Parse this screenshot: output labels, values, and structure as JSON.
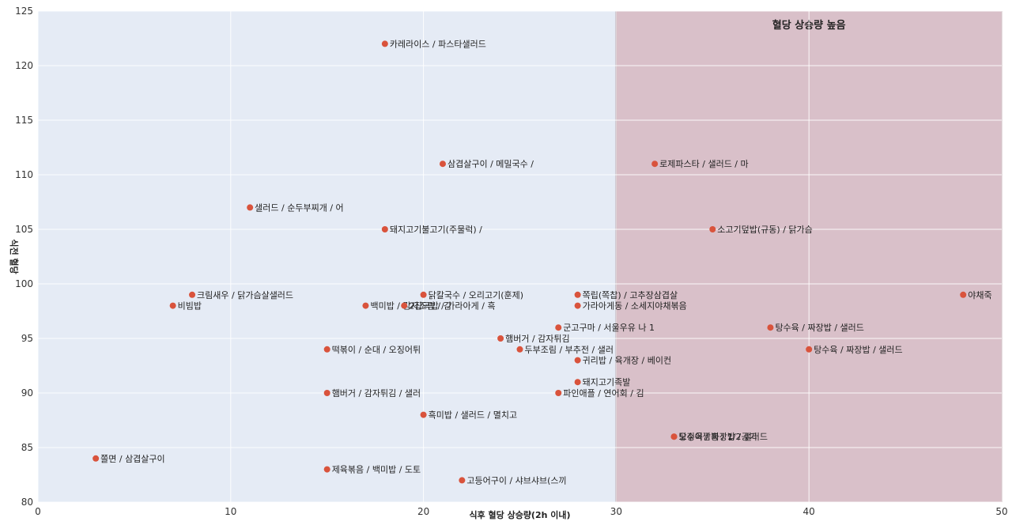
{
  "chart_data": {
    "type": "scatter",
    "xlabel": "식후 혈당 상승량(2h 이내)",
    "ylabel": "식전 혈당",
    "xlim": [
      0,
      50
    ],
    "ylim": [
      80,
      125
    ],
    "x_ticks": [
      0,
      10,
      20,
      30,
      40,
      50
    ],
    "y_ticks": [
      80,
      85,
      90,
      95,
      100,
      105,
      110,
      115,
      120,
      125
    ],
    "grid": true,
    "regions": [
      {
        "x_from": 30,
        "x_to": 50,
        "label": "혈당 상승량 높음",
        "color": "#d9c0c9"
      }
    ],
    "plot_background": "#e5ebf5",
    "marker_color": "#d9533c",
    "points": [
      {
        "x": 18,
        "y": 122,
        "label": "카레라이스 / 파스타샐러드"
      },
      {
        "x": 21,
        "y": 111,
        "label": "삼겹살구이 / 메밀국수 /"
      },
      {
        "x": 32,
        "y": 111,
        "label": "로제파스타 / 샐러드 / 마"
      },
      {
        "x": 11,
        "y": 107,
        "label": "샐러드 / 순두부찌개 / 어"
      },
      {
        "x": 18,
        "y": 105,
        "label": "돼지고기불고기(주물럭) /"
      },
      {
        "x": 35,
        "y": 105,
        "label": "소고기덮밥(규동) / 닭가슴"
      },
      {
        "x": 8,
        "y": 99,
        "label": "크림새우 / 닭가슴살샐러드"
      },
      {
        "x": 20,
        "y": 99,
        "label": "닭칼국수 / 오리고기(훈제)"
      },
      {
        "x": 28,
        "y": 99,
        "label": "쪽립(쪽찹) / 고추장삼겹살"
      },
      {
        "x": 48,
        "y": 99,
        "label": "야채죽"
      },
      {
        "x": 7,
        "y": 98,
        "label": "비빔밥"
      },
      {
        "x": 17,
        "y": 98,
        "label": "백미밥 / 감자조림 / 김"
      },
      {
        "x": 19,
        "y": 98,
        "label": "2잡곡밥 / 가라아게 / 흑"
      },
      {
        "x": 28,
        "y": 98,
        "label": "가라아게동 / 소세지야채볶음"
      },
      {
        "x": 27,
        "y": 96,
        "label": "군고구마 / 서울우유 나 1"
      },
      {
        "x": 38,
        "y": 96,
        "label": "탕수육 / 짜장밥 / 샐러드"
      },
      {
        "x": 24,
        "y": 95,
        "label": "햄버거 / 감자튀김"
      },
      {
        "x": 15,
        "y": 94,
        "label": "떡볶이 / 순대 / 오징어튀"
      },
      {
        "x": 25,
        "y": 94,
        "label": "두부조림 / 부추전 / 샐러"
      },
      {
        "x": 40,
        "y": 94,
        "label": "탕수육 / 짜장밥 / 샐러드"
      },
      {
        "x": 28,
        "y": 93,
        "label": "귀리밥 / 육개장 / 베이컨"
      },
      {
        "x": 28,
        "y": 91,
        "label": "돼지고기족발"
      },
      {
        "x": 15,
        "y": 90,
        "label": "햄버거 / 감자튀김 / 샐러"
      },
      {
        "x": 27,
        "y": 90,
        "label": "파인애플 / 연어회 / 김"
      },
      {
        "x": 20,
        "y": 88,
        "label": "흑미밥 / 샐러드 / 멸치고"
      },
      {
        "x": 33,
        "y": 86,
        "label": "탕수육 / 짜장밥 / 샐러드"
      },
      {
        "x": 33,
        "y": 86,
        "label": "오징어짬뽕 / 1/2공기"
      },
      {
        "x": 3,
        "y": 84,
        "label": "쫄면 / 삼겹살구이"
      },
      {
        "x": 15,
        "y": 83,
        "label": "제육볶음 / 백미밥 / 도토"
      },
      {
        "x": 22,
        "y": 82,
        "label": "고등어구이 / 샤브샤브(스끼"
      }
    ]
  }
}
